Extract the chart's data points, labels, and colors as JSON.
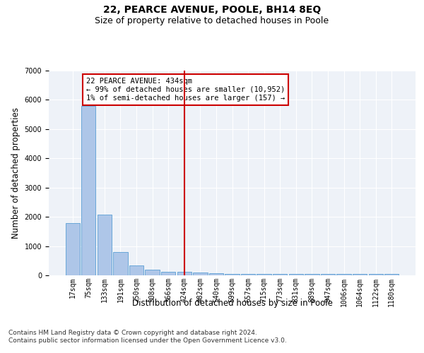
{
  "title": "22, PEARCE AVENUE, POOLE, BH14 8EQ",
  "subtitle": "Size of property relative to detached houses in Poole",
  "xlabel": "Distribution of detached houses by size in Poole",
  "ylabel": "Number of detached properties",
  "footnote": "Contains HM Land Registry data © Crown copyright and database right 2024.\nContains public sector information licensed under the Open Government Licence v3.0.",
  "bar_labels": [
    "17sqm",
    "75sqm",
    "133sqm",
    "191sqm",
    "250sqm",
    "308sqm",
    "366sqm",
    "424sqm",
    "482sqm",
    "540sqm",
    "599sqm",
    "657sqm",
    "715sqm",
    "773sqm",
    "831sqm",
    "889sqm",
    "947sqm",
    "1006sqm",
    "1064sqm",
    "1122sqm",
    "1180sqm"
  ],
  "bar_values": [
    1780,
    5800,
    2080,
    800,
    340,
    200,
    130,
    120,
    100,
    70,
    60,
    60,
    60,
    60,
    60,
    55,
    55,
    55,
    55,
    55,
    55
  ],
  "bar_color": "#aec6e8",
  "bar_edge_color": "#5a9fd4",
  "ylim": [
    0,
    7000
  ],
  "yticks": [
    0,
    1000,
    2000,
    3000,
    4000,
    5000,
    6000,
    7000
  ],
  "vline_x_index": 7.0,
  "vline_color": "#cc0000",
  "annotation_text": "22 PEARCE AVENUE: 434sqm\n← 99% of detached houses are smaller (10,952)\n1% of semi-detached houses are larger (157) →",
  "annotation_box_color": "#cc0000",
  "bg_color": "#eef2f8",
  "grid_color": "#ffffff",
  "title_fontsize": 10,
  "subtitle_fontsize": 9,
  "axis_label_fontsize": 8.5,
  "tick_fontsize": 7,
  "annot_fontsize": 7.5,
  "footnote_fontsize": 6.5
}
